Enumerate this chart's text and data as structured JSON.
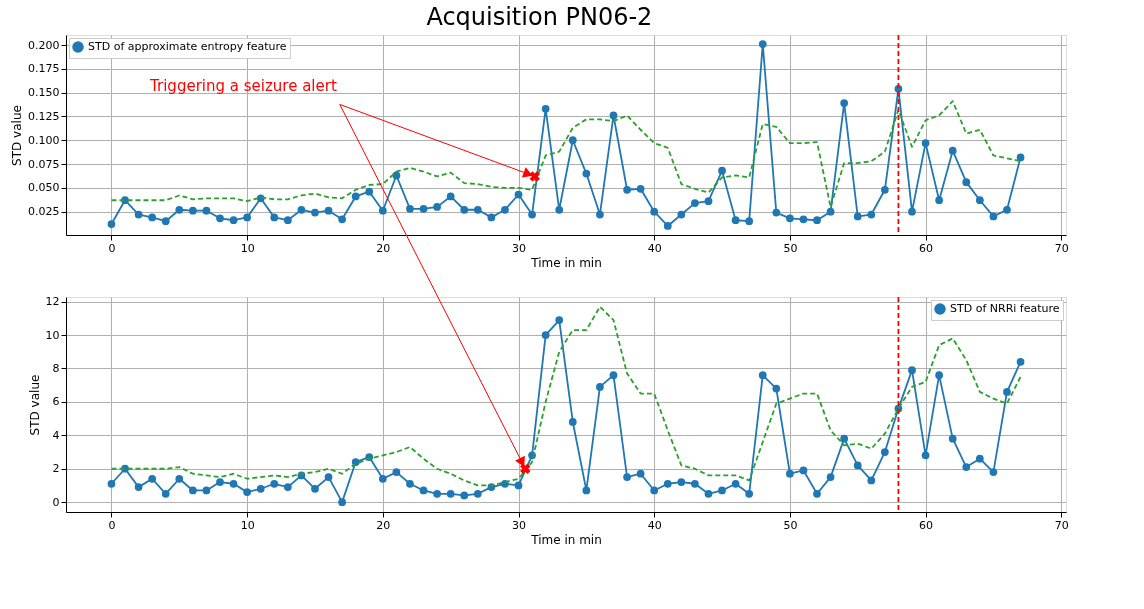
{
  "chart_data": [
    {
      "type": "line",
      "title": "Acquisition PN06-2",
      "xlabel": "Time in min",
      "ylabel": "STD value",
      "xlim": [
        -3.35,
        70.35
      ],
      "xticks": [
        0,
        10,
        20,
        30,
        40,
        50,
        60,
        70
      ],
      "ylim": [
        0.0005,
        0.2105
      ],
      "yticks": [
        {
          "value": 0.025,
          "label": "0.025"
        },
        {
          "value": 0.05,
          "label": "0.050"
        },
        {
          "value": 0.075,
          "label": "0.075"
        },
        {
          "value": 0.1,
          "label": "0.100"
        },
        {
          "value": 0.125,
          "label": "0.125"
        },
        {
          "value": 0.15,
          "label": "0.150"
        },
        {
          "value": 0.175,
          "label": "0.175"
        },
        {
          "value": 0.2,
          "label": "0.200"
        }
      ],
      "grid": true,
      "legend": "top left",
      "x": [
        0,
        1,
        2,
        3,
        4,
        5,
        6,
        7,
        8,
        9,
        10,
        11,
        12,
        13,
        14,
        15,
        16,
        17,
        18,
        19,
        20,
        21,
        22,
        23,
        24,
        25,
        26,
        27,
        28,
        29,
        30,
        31,
        32,
        33,
        34,
        35,
        36,
        37,
        38,
        39,
        40,
        41,
        42,
        43,
        44,
        45,
        46,
        47,
        48,
        49,
        50,
        51,
        52,
        53,
        54,
        55,
        56,
        57,
        58,
        59,
        60,
        61,
        62,
        63,
        64,
        65,
        66,
        67
      ],
      "series": [
        {
          "name": "STD of approximate entropy feature",
          "color": "#1f77b4",
          "marker": "circle",
          "line_style": "solid",
          "values": [
            0.012,
            0.037,
            0.022,
            0.019,
            0.015,
            0.027,
            0.026,
            0.026,
            0.018,
            0.016,
            0.019,
            0.039,
            0.019,
            0.016,
            0.027,
            0.024,
            0.026,
            0.017,
            0.041,
            0.046,
            0.026,
            0.063,
            0.028,
            0.028,
            0.03,
            0.041,
            0.027,
            0.027,
            0.019,
            0.027,
            0.043,
            0.022,
            0.133,
            0.027,
            0.1,
            0.065,
            0.022,
            0.126,
            0.048,
            0.049,
            0.025,
            0.01,
            0.022,
            0.034,
            0.036,
            0.068,
            0.016,
            0.015,
            0.201,
            0.024,
            0.018,
            0.017,
            0.016,
            0.025,
            0.139,
            0.02,
            0.022,
            0.048,
            0.154,
            0.025,
            0.097,
            0.037,
            0.089,
            0.056,
            0.037,
            0.02,
            0.027,
            0.082
          ]
        },
        {
          "color": "#2ca02c",
          "marker": "none",
          "line_style": "dashed",
          "values": [
            0.037,
            0.037,
            0.037,
            0.037,
            0.037,
            0.042,
            0.038,
            0.039,
            0.039,
            0.039,
            0.036,
            0.04,
            0.038,
            0.038,
            0.042,
            0.044,
            0.04,
            0.039,
            0.048,
            0.053,
            0.054,
            0.067,
            0.071,
            0.067,
            0.062,
            0.066,
            0.055,
            0.054,
            0.051,
            0.05,
            0.05,
            0.048,
            0.084,
            0.088,
            0.113,
            0.122,
            0.122,
            0.12,
            0.126,
            0.111,
            0.097,
            0.092,
            0.054,
            0.049,
            0.045,
            0.061,
            0.063,
            0.061,
            0.117,
            0.114,
            0.097,
            0.097,
            0.098,
            0.03,
            0.076,
            0.076,
            0.078,
            0.088,
            0.132,
            0.093,
            0.121,
            0.126,
            0.141,
            0.107,
            0.111,
            0.084,
            0.081,
            0.078
          ]
        },
        {
          "type": "scatter",
          "color": "#ff0000",
          "marker": "cross",
          "x": [
            31.2
          ],
          "values": [
            0.062
          ]
        }
      ],
      "ref_lines": [
        {
          "axis": "x",
          "value": 58,
          "color": "#ff0000",
          "line_style": "dashed"
        }
      ],
      "annotations": [
        {
          "text": "Triggering a seizure alert",
          "x": 31.2,
          "y": 0.062
        }
      ]
    },
    {
      "type": "line",
      "xlabel": "Time in min",
      "ylabel": "STD value",
      "xlim": [
        -3.35,
        70.35
      ],
      "xticks": [
        0,
        10,
        20,
        30,
        40,
        50,
        60,
        70
      ],
      "ylim": [
        -0.59,
        12.28
      ],
      "yticks": [
        0,
        2,
        4,
        6,
        8,
        10,
        12
      ],
      "grid": true,
      "legend": "top right",
      "x": [
        0,
        1,
        2,
        3,
        4,
        5,
        6,
        7,
        8,
        9,
        10,
        11,
        12,
        13,
        14,
        15,
        16,
        17,
        18,
        19,
        20,
        21,
        22,
        23,
        24,
        25,
        26,
        27,
        28,
        29,
        30,
        31,
        32,
        33,
        34,
        35,
        36,
        37,
        38,
        39,
        40,
        41,
        42,
        43,
        44,
        45,
        46,
        47,
        48,
        49,
        50,
        51,
        52,
        53,
        54,
        55,
        56,
        57,
        58,
        59,
        60,
        61,
        62,
        63,
        64,
        65,
        66,
        67
      ],
      "series": [
        {
          "name": "STD of NRRi feature",
          "color": "#1f77b4",
          "marker": "circle",
          "line_style": "solid",
          "values": [
            1.1,
            2.0,
            0.9,
            1.4,
            0.5,
            1.4,
            0.7,
            0.7,
            1.2,
            1.1,
            0.6,
            0.8,
            1.1,
            0.9,
            1.6,
            0.8,
            1.5,
            0.0,
            2.4,
            2.7,
            1.4,
            1.8,
            1.1,
            0.7,
            0.5,
            0.5,
            0.4,
            0.5,
            0.9,
            1.1,
            1.0,
            2.8,
            10.0,
            10.9,
            4.8,
            0.7,
            6.9,
            7.6,
            1.5,
            1.7,
            0.7,
            1.1,
            1.2,
            1.1,
            0.5,
            0.7,
            1.1,
            0.5,
            7.6,
            6.8,
            1.7,
            1.9,
            0.5,
            1.5,
            3.8,
            2.2,
            1.3,
            3.0,
            5.6,
            7.9,
            2.8,
            7.6,
            3.8,
            2.1,
            2.6,
            1.8,
            6.6,
            8.4
          ]
        },
        {
          "color": "#2ca02c",
          "marker": "none",
          "line_style": "dashed",
          "values": [
            2.0,
            2.0,
            2.0,
            2.0,
            2.0,
            2.1,
            1.7,
            1.6,
            1.5,
            1.7,
            1.4,
            1.5,
            1.6,
            1.5,
            1.7,
            1.8,
            2.0,
            1.7,
            2.3,
            2.6,
            2.8,
            3.0,
            3.3,
            2.6,
            2.0,
            1.7,
            1.3,
            1.0,
            1.0,
            1.2,
            1.4,
            2.4,
            6.0,
            9.0,
            10.3,
            10.3,
            11.7,
            10.9,
            7.7,
            6.5,
            6.5,
            4.3,
            2.2,
            2.0,
            1.6,
            1.6,
            1.6,
            1.3,
            3.6,
            5.9,
            6.2,
            6.5,
            6.5,
            4.3,
            3.4,
            3.5,
            3.2,
            4.1,
            5.6,
            6.9,
            7.2,
            9.4,
            9.8,
            8.5,
            6.6,
            6.2,
            5.9,
            7.5
          ]
        },
        {
          "type": "scatter",
          "color": "#ff0000",
          "marker": "cross",
          "x": [
            30.5
          ],
          "values": [
            2.0
          ]
        }
      ],
      "ref_lines": [
        {
          "axis": "x",
          "value": 58,
          "color": "#ff0000",
          "line_style": "dashed"
        }
      ]
    }
  ]
}
